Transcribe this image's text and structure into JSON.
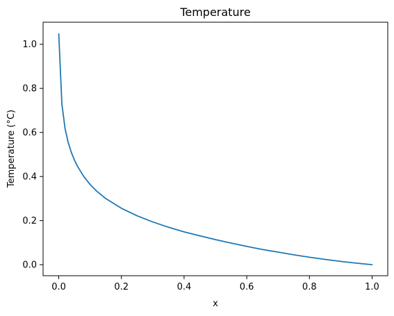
{
  "chart_data": {
    "type": "line",
    "title": "Temperature",
    "xlabel": "x",
    "ylabel": "Temperature (°C)",
    "xlim": [
      -0.05,
      1.05
    ],
    "ylim": [
      -0.05,
      1.1
    ],
    "xticks": [
      0.0,
      0.2,
      0.4,
      0.6,
      0.8,
      1.0
    ],
    "xtick_labels": [
      "0.0",
      "0.2",
      "0.4",
      "0.6",
      "0.8",
      "1.0"
    ],
    "yticks": [
      0.0,
      0.2,
      0.4,
      0.6,
      0.8,
      1.0
    ],
    "ytick_labels": [
      "0.0",
      "0.2",
      "0.4",
      "0.6",
      "0.8",
      "1.0"
    ],
    "grid": false,
    "legend": false,
    "series": [
      {
        "color": "#1f77b4",
        "x": [
          0.0,
          0.01,
          0.02,
          0.03,
          0.04,
          0.05,
          0.06,
          0.08,
          0.1,
          0.12,
          0.15,
          0.2,
          0.25,
          0.3,
          0.35,
          0.4,
          0.45,
          0.5,
          0.55,
          0.6,
          0.65,
          0.7,
          0.75,
          0.8,
          0.85,
          0.9,
          0.95,
          1.0
        ],
        "y": [
          1.047,
          0.729,
          0.619,
          0.555,
          0.51,
          0.475,
          0.446,
          0.4,
          0.364,
          0.335,
          0.3,
          0.256,
          0.222,
          0.194,
          0.17,
          0.149,
          0.131,
          0.114,
          0.098,
          0.083,
          0.069,
          0.057,
          0.045,
          0.034,
          0.024,
          0.015,
          0.007,
          0.0
        ]
      }
    ]
  }
}
